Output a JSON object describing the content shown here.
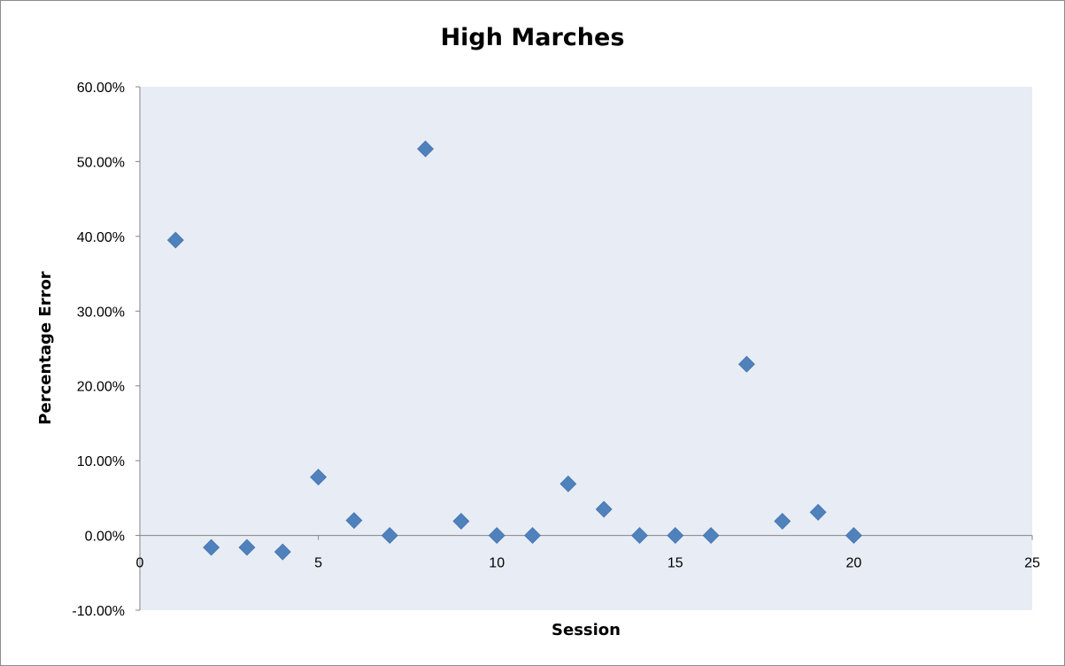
{
  "chart_data": {
    "type": "scatter",
    "title": "High Marches",
    "xlabel": "Session",
    "ylabel": "Percentage Error",
    "xlim": [
      0,
      25
    ],
    "ylim": [
      -0.1,
      0.6
    ],
    "x_ticks": [
      0,
      5,
      10,
      15,
      20,
      25
    ],
    "y_ticks": [
      -0.1,
      0.0,
      0.1,
      0.2,
      0.3,
      0.4,
      0.5,
      0.6
    ],
    "y_tick_labels": [
      "-10.00%",
      "0.00%",
      "10.00%",
      "20.00%",
      "30.00%",
      "40.00%",
      "50.00%",
      "60.00%"
    ],
    "grid": false,
    "legend": "none",
    "plot_background": "#e8ecf4",
    "marker": "diamond",
    "series": [
      {
        "color": "#4f81bd",
        "x": [
          1,
          2,
          3,
          4,
          5,
          6,
          7,
          8,
          9,
          10,
          11,
          12,
          13,
          14,
          15,
          16,
          17,
          18,
          19,
          20
        ],
        "y": [
          0.395,
          -0.016,
          -0.016,
          -0.022,
          0.078,
          0.02,
          0.0,
          0.517,
          0.019,
          0.0,
          0.0,
          0.069,
          0.035,
          0.0,
          0.0,
          0.0,
          0.229,
          0.019,
          0.031,
          0.0
        ]
      }
    ]
  }
}
